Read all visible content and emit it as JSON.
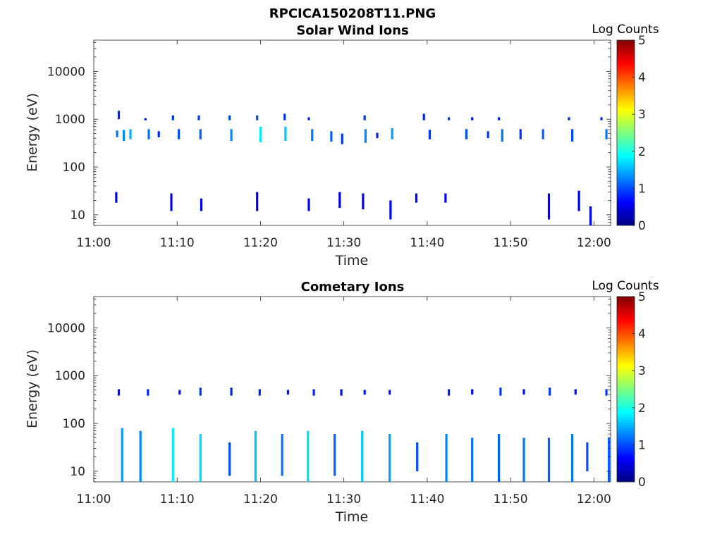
{
  "figure": {
    "title": "RPCICA150208T11.PNG"
  },
  "colorbar_stops": [
    "#00007f",
    "#0000ff",
    "#007fff",
    "#00ffff",
    "#7fff7f",
    "#ffff00",
    "#ff7f00",
    "#ff0000",
    "#7f0000"
  ],
  "chart_data": [
    {
      "type": "heatmap",
      "title": "Solar Wind Ions",
      "xlabel": "Time",
      "ylabel": "Energy (eV)",
      "y_scale": "log",
      "x_range": [
        "11:00",
        "12:02"
      ],
      "y_range": [
        6,
        45000
      ],
      "x_ticks": [
        "11:00",
        "11:10",
        "11:20",
        "11:30",
        "11:40",
        "11:50",
        "12:00"
      ],
      "y_ticks": [
        "10",
        "100",
        "1000",
        "10000"
      ],
      "colorbar": {
        "label": "Log Counts",
        "range": [
          0,
          5
        ],
        "ticks": [
          "0",
          "1",
          "2",
          "3",
          "4",
          "5"
        ]
      },
      "cells": [
        {
          "t": "11:02.8",
          "e": [
            420,
            580
          ],
          "c": 1.2
        },
        {
          "t": "11:03.0",
          "e": [
            1000,
            1500
          ],
          "c": 0.8
        },
        {
          "t": "11:03.6",
          "e": [
            350,
            600
          ],
          "c": 1.3
        },
        {
          "t": "11:04.4",
          "e": [
            380,
            620
          ],
          "c": 1.5
        },
        {
          "t": "11:06.2",
          "e": [
            950,
            1050
          ],
          "c": 0.7
        },
        {
          "t": "11:06.6",
          "e": [
            380,
            620
          ],
          "c": 1.2
        },
        {
          "t": "11:07.8",
          "e": [
            420,
            560
          ],
          "c": 0.8
        },
        {
          "t": "11:09.5",
          "e": [
            950,
            1200
          ],
          "c": 0.9
        },
        {
          "t": "11:10.2",
          "e": [
            380,
            620
          ],
          "c": 1.0
        },
        {
          "t": "11:12.6",
          "e": [
            950,
            1200
          ],
          "c": 0.9
        },
        {
          "t": "11:12.8",
          "e": [
            380,
            620
          ],
          "c": 1.1
        },
        {
          "t": "11:16.3",
          "e": [
            950,
            1200
          ],
          "c": 1.0
        },
        {
          "t": "11:16.5",
          "e": [
            350,
            620
          ],
          "c": 1.3
        },
        {
          "t": "11:19.6",
          "e": [
            950,
            1200
          ],
          "c": 1.0
        },
        {
          "t": "11:20.0",
          "e": [
            330,
            700
          ],
          "c": 1.8
        },
        {
          "t": "11:22.9",
          "e": [
            950,
            1300
          ],
          "c": 0.9
        },
        {
          "t": "11:23.0",
          "e": [
            350,
            700
          ],
          "c": 1.6
        },
        {
          "t": "11:25.8",
          "e": [
            950,
            1100
          ],
          "c": 0.8
        },
        {
          "t": "11:26.2",
          "e": [
            350,
            620
          ],
          "c": 1.2
        },
        {
          "t": "11:28.5",
          "e": [
            340,
            560
          ],
          "c": 1.1
        },
        {
          "t": "11:29.8",
          "e": [
            300,
            500
          ],
          "c": 0.9
        },
        {
          "t": "11:32.5",
          "e": [
            950,
            1200
          ],
          "c": 0.9
        },
        {
          "t": "11:32.6",
          "e": [
            320,
            620
          ],
          "c": 1.3
        },
        {
          "t": "11:34.0",
          "e": [
            400,
            520
          ],
          "c": 0.8
        },
        {
          "t": "11:35.8",
          "e": [
            380,
            650
          ],
          "c": 1.4
        },
        {
          "t": "11:39.6",
          "e": [
            950,
            1300
          ],
          "c": 0.8
        },
        {
          "t": "11:40.3",
          "e": [
            380,
            600
          ],
          "c": 0.9
        },
        {
          "t": "11:42.6",
          "e": [
            950,
            1100
          ],
          "c": 0.9
        },
        {
          "t": "11:44.7",
          "e": [
            380,
            620
          ],
          "c": 1.0
        },
        {
          "t": "11:45.4",
          "e": [
            950,
            1100
          ],
          "c": 0.7
        },
        {
          "t": "11:47.3",
          "e": [
            400,
            560
          ],
          "c": 0.9
        },
        {
          "t": "11:48.6",
          "e": [
            950,
            1100
          ],
          "c": 0.8
        },
        {
          "t": "11:49.0",
          "e": [
            340,
            620
          ],
          "c": 1.2
        },
        {
          "t": "11:51.2",
          "e": [
            380,
            620
          ],
          "c": 0.9
        },
        {
          "t": "11:53.9",
          "e": [
            380,
            620
          ],
          "c": 1.1
        },
        {
          "t": "11:57.0",
          "e": [
            950,
            1100
          ],
          "c": 0.8
        },
        {
          "t": "11:57.4",
          "e": [
            340,
            620
          ],
          "c": 1.0
        },
        {
          "t": "12:01.5",
          "e": [
            380,
            620
          ],
          "c": 1.2
        },
        {
          "t": "12:00.9",
          "e": [
            950,
            1100
          ],
          "c": 0.8
        },
        {
          "t": "11:02.7",
          "e": [
            18,
            30
          ],
          "c": 0.6
        },
        {
          "t": "11:09.3",
          "e": [
            12,
            28
          ],
          "c": 0.6
        },
        {
          "t": "11:12.9",
          "e": [
            12,
            22
          ],
          "c": 0.6
        },
        {
          "t": "11:19.6",
          "e": [
            12,
            30
          ],
          "c": 0.6
        },
        {
          "t": "11:25.8",
          "e": [
            12,
            22
          ],
          "c": 0.6
        },
        {
          "t": "11:29.5",
          "e": [
            14,
            30
          ],
          "c": 0.6
        },
        {
          "t": "11:32.3",
          "e": [
            13,
            28
          ],
          "c": 0.6
        },
        {
          "t": "11:35.6",
          "e": [
            8,
            20
          ],
          "c": 0.6
        },
        {
          "t": "11:38.7",
          "e": [
            18,
            28
          ],
          "c": 0.6
        },
        {
          "t": "11:42.2",
          "e": [
            18,
            28
          ],
          "c": 0.6
        },
        {
          "t": "11:54.6",
          "e": [
            8,
            28
          ],
          "c": 0.6
        },
        {
          "t": "11:58.2",
          "e": [
            12,
            32
          ],
          "c": 0.6
        },
        {
          "t": "11:59.6",
          "e": [
            6,
            15
          ],
          "c": 0.6
        }
      ]
    },
    {
      "type": "heatmap",
      "title": "Cometary Ions",
      "xlabel": "Time",
      "ylabel": "Energy (eV)",
      "y_scale": "log",
      "x_range": [
        "11:00",
        "12:02"
      ],
      "y_range": [
        6,
        45000
      ],
      "x_ticks": [
        "11:00",
        "11:10",
        "11:20",
        "11:30",
        "11:40",
        "11:50",
        "12:00"
      ],
      "y_ticks": [
        "10",
        "100",
        "1000",
        "10000"
      ],
      "colorbar": {
        "label": "Log Counts",
        "range": [
          0,
          5
        ],
        "ticks": [
          "0",
          "1",
          "2",
          "3",
          "4",
          "5"
        ]
      },
      "cells": [
        {
          "t": "11:03.0",
          "e": [
            380,
            520
          ],
          "c": 0.7
        },
        {
          "t": "11:06.5",
          "e": [
            380,
            520
          ],
          "c": 0.8
        },
        {
          "t": "11:10.3",
          "e": [
            400,
            500
          ],
          "c": 0.7
        },
        {
          "t": "11:12.8",
          "e": [
            380,
            560
          ],
          "c": 0.9
        },
        {
          "t": "11:16.5",
          "e": [
            380,
            560
          ],
          "c": 0.8
        },
        {
          "t": "11:19.9",
          "e": [
            380,
            520
          ],
          "c": 0.8
        },
        {
          "t": "11:23.3",
          "e": [
            400,
            500
          ],
          "c": 0.7
        },
        {
          "t": "11:26.4",
          "e": [
            380,
            520
          ],
          "c": 0.8
        },
        {
          "t": "11:29.7",
          "e": [
            380,
            520
          ],
          "c": 0.7
        },
        {
          "t": "11:32.5",
          "e": [
            400,
            500
          ],
          "c": 0.7
        },
        {
          "t": "11:35.5",
          "e": [
            400,
            500
          ],
          "c": 0.7
        },
        {
          "t": "11:42.6",
          "e": [
            380,
            520
          ],
          "c": 0.8
        },
        {
          "t": "11:45.4",
          "e": [
            400,
            520
          ],
          "c": 0.7
        },
        {
          "t": "11:48.8",
          "e": [
            380,
            560
          ],
          "c": 0.9
        },
        {
          "t": "11:51.6",
          "e": [
            400,
            520
          ],
          "c": 0.7
        },
        {
          "t": "11:54.7",
          "e": [
            380,
            560
          ],
          "c": 0.9
        },
        {
          "t": "11:57.8",
          "e": [
            400,
            520
          ],
          "c": 0.7
        },
        {
          "t": "12:01.5",
          "e": [
            380,
            520
          ],
          "c": 0.9
        },
        {
          "t": "11:03.4",
          "e": [
            6,
            80
          ],
          "c": 1.4
        },
        {
          "t": "11:05.6",
          "e": [
            6,
            70
          ],
          "c": 1.3
        },
        {
          "t": "11:09.5",
          "e": [
            6,
            80
          ],
          "c": 1.8
        },
        {
          "t": "11:12.8",
          "e": [
            6,
            60
          ],
          "c": 1.7
        },
        {
          "t": "11:16.3",
          "e": [
            8,
            40
          ],
          "c": 1.0
        },
        {
          "t": "11:19.4",
          "e": [
            6,
            70
          ],
          "c": 1.6
        },
        {
          "t": "11:22.6",
          "e": [
            8,
            60
          ],
          "c": 1.2
        },
        {
          "t": "11:25.7",
          "e": [
            6,
            70
          ],
          "c": 1.7
        },
        {
          "t": "11:28.9",
          "e": [
            8,
            60
          ],
          "c": 1.1
        },
        {
          "t": "11:32.2",
          "e": [
            6,
            70
          ],
          "c": 1.6
        },
        {
          "t": "11:35.5",
          "e": [
            6,
            60
          ],
          "c": 1.4
        },
        {
          "t": "11:38.8",
          "e": [
            10,
            40
          ],
          "c": 1.0
        },
        {
          "t": "11:42.3",
          "e": [
            6,
            60
          ],
          "c": 1.3
        },
        {
          "t": "11:45.4",
          "e": [
            6,
            50
          ],
          "c": 1.2
        },
        {
          "t": "11:48.6",
          "e": [
            6,
            60
          ],
          "c": 1.1
        },
        {
          "t": "11:51.6",
          "e": [
            6,
            50
          ],
          "c": 1.2
        },
        {
          "t": "11:54.6",
          "e": [
            6,
            50
          ],
          "c": 1.1
        },
        {
          "t": "11:57.4",
          "e": [
            6,
            60
          ],
          "c": 1.2
        },
        {
          "t": "11:59.2",
          "e": [
            10,
            40
          ],
          "c": 1.0
        },
        {
          "t": "12:01.8",
          "e": [
            6,
            50
          ],
          "c": 1.1
        }
      ]
    }
  ]
}
